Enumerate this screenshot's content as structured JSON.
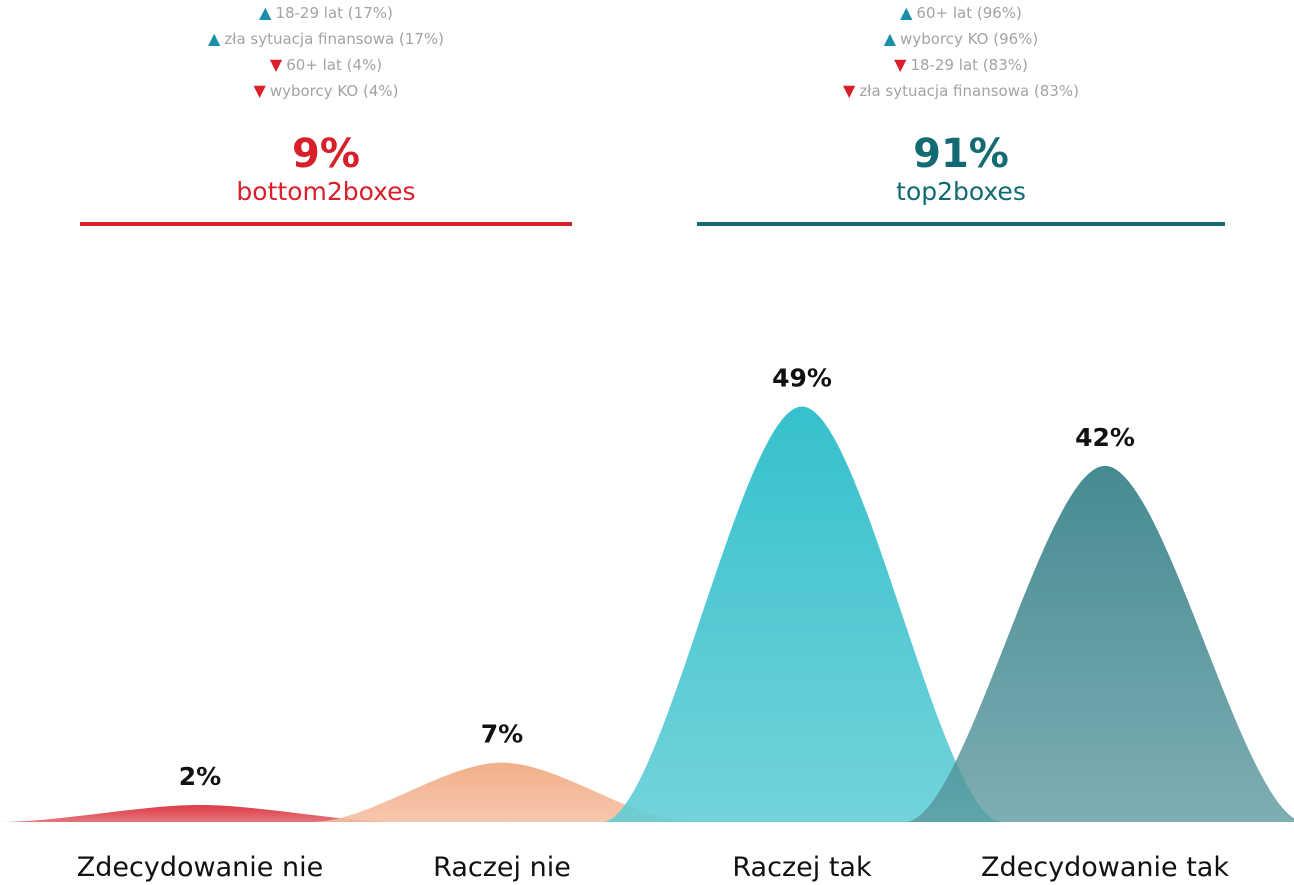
{
  "bottom_panel": {
    "items": [
      {
        "dir": "up",
        "text": "18-29 lat (17%)"
      },
      {
        "dir": "up",
        "text": "zła sytuacja finansowa (17%)"
      },
      {
        "dir": "down",
        "text": "60+ lat (4%)"
      },
      {
        "dir": "down",
        "text": "wyborcy KO (4%)"
      }
    ],
    "value": "9%",
    "label": "bottom2boxes"
  },
  "top_panel": {
    "items": [
      {
        "dir": "up",
        "text": "60+ lat (96%)"
      },
      {
        "dir": "up",
        "text": "wyborcy KO (96%)"
      },
      {
        "dir": "down",
        "text": "18-29 lat (83%)"
      },
      {
        "dir": "down",
        "text": "zła sytuacja finansowa (83%)"
      }
    ],
    "value": "91%",
    "label": "top2boxes"
  },
  "arrows": {
    "up": "▲",
    "down": "▼",
    "up_color": "#1a8fa8",
    "down_color": "#d81f2a"
  },
  "chart_data": {
    "type": "area",
    "categories": [
      "Zdecydowanie nie",
      "Raczej nie",
      "Raczej tak",
      "Zdecydowanie tak"
    ],
    "values": [
      2,
      7,
      49,
      42
    ],
    "value_labels": [
      "2%",
      "7%",
      "49%",
      "42%"
    ],
    "ylim": [
      0,
      50
    ],
    "grid": false,
    "colors": [
      "#d81f2a",
      "#f0a47a",
      "#1ab8c4",
      "#126a73"
    ]
  }
}
